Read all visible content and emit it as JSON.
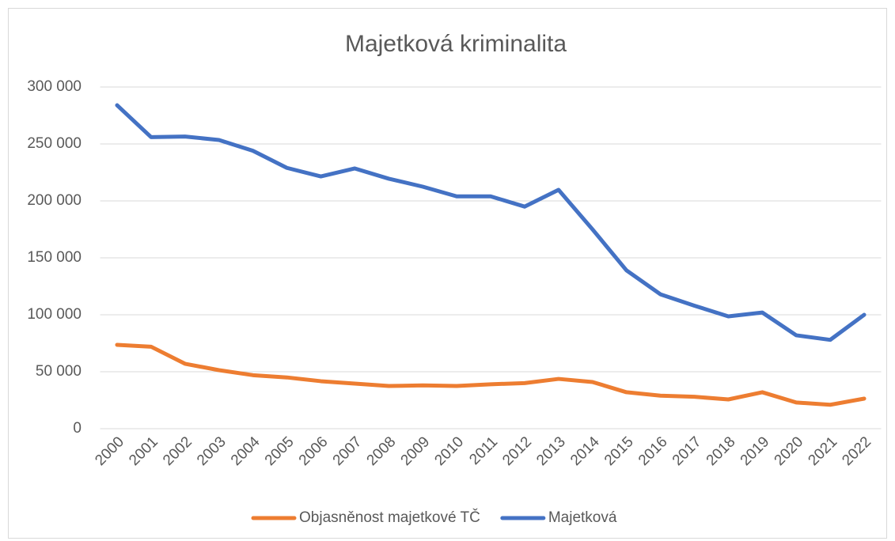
{
  "chart_data": {
    "type": "line",
    "title": "Majetková kriminalita",
    "categories": [
      "2000",
      "2001",
      "2002",
      "2003",
      "2004",
      "2005",
      "2006",
      "2007",
      "2008",
      "2009",
      "2010",
      "2011",
      "2012",
      "2013",
      "2014",
      "2015",
      "2016",
      "2017",
      "2018",
      "2019",
      "2020",
      "2021",
      "2022"
    ],
    "series": [
      {
        "name": "Objasněnost majetkové TČ",
        "color": "#ed7d31",
        "values": [
          73600,
          72000,
          57000,
          51400,
          47000,
          45000,
          41700,
          39600,
          37500,
          38000,
          37500,
          39000,
          40000,
          43700,
          41000,
          32000,
          29000,
          28000,
          25700,
          32000,
          23000,
          21000,
          26400
        ]
      },
      {
        "name": "Majetková",
        "color": "#4472c4",
        "values": [
          284000,
          256000,
          256500,
          253500,
          244000,
          229000,
          221500,
          228500,
          219500,
          212500,
          204000,
          204000,
          195000,
          209700,
          175000,
          139000,
          118000,
          108000,
          98600,
          102000,
          82000,
          78000,
          100000
        ]
      }
    ],
    "ylim": [
      0,
      300000
    ],
    "yticks": [
      0,
      {
        "value": 50000,
        "label": "50 000"
      },
      {
        "value": 100000,
        "label": "100 000"
      },
      {
        "value": 150000,
        "label": "150 000"
      },
      {
        "value": 200000,
        "label": "200 000"
      },
      {
        "value": 250000,
        "label": "250 000"
      },
      {
        "value": 300000,
        "label": "300 000"
      }
    ],
    "grid": true,
    "legend": "bottom"
  }
}
